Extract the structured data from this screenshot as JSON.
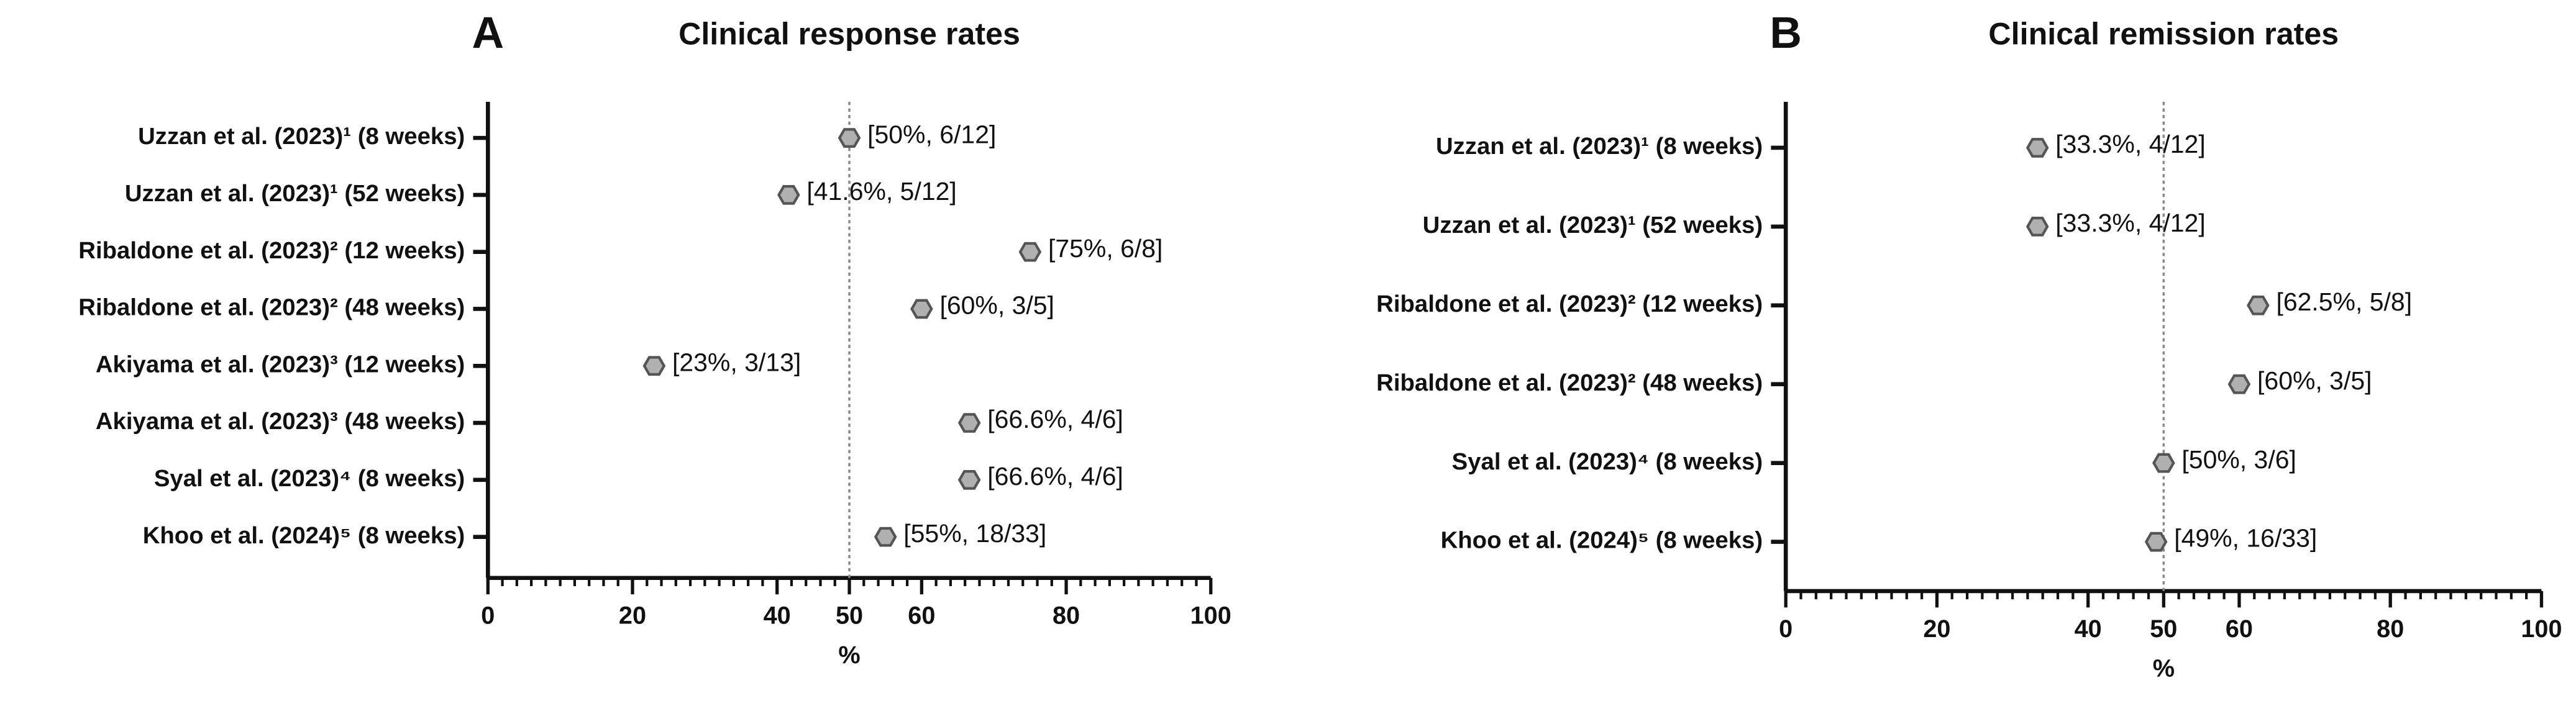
{
  "chart_data": [
    {
      "type": "dot",
      "panel": "A",
      "title": "Clinical response rates",
      "categories": [
        "Uzzan et al. (2023)¹ (8 weeks)",
        "Uzzan et al. (2023)¹ (52 weeks)",
        "Ribaldone et al. (2023)² (12 weeks)",
        "Ribaldone et al. (2023)² (48 weeks)",
        "Akiyama et al. (2023)³ (12 weeks)",
        "Akiyama et al. (2023)³ (48 weeks)",
        "Syal et al. (2023)⁴ (8 weeks)",
        "Khoo et al. (2024)⁵ (8 weeks)"
      ],
      "values": [
        50,
        41.6,
        75,
        60,
        23,
        66.6,
        66.6,
        55
      ],
      "value_labels": [
        "[50%, 6/12]",
        "[41.6%, 5/12]",
        "[75%, 6/8]",
        "[60%, 3/5]",
        "[23%, 3/13]",
        "[66.6%, 4/6]",
        "[66.6%, 4/6]",
        "[55%, 18/33]"
      ],
      "color": "#b0b0b0",
      "xlabel": "%",
      "xlim": [
        0,
        100
      ],
      "xticks": [
        0,
        20,
        40,
        50,
        60,
        80,
        100
      ],
      "xminor_step": 2,
      "reference_line": 50
    },
    {
      "type": "dot",
      "panel": "B",
      "title": "Clinical remission rates",
      "categories": [
        "Uzzan et al. (2023)¹ (8 weeks)",
        "Uzzan et al. (2023)¹ (52 weeks)",
        "Ribaldone et al. (2023)² (12 weeks)",
        "Ribaldone et al. (2023)² (48 weeks)",
        "Syal et al. (2023)⁴ (8 weeks)",
        "Khoo et al. (2024)⁵ (8 weeks)"
      ],
      "values": [
        33.3,
        33.3,
        62.5,
        60,
        50,
        49
      ],
      "value_labels": [
        "[33.3%, 4/12]",
        "[33.3%, 4/12]",
        "[62.5%, 5/8]",
        "[60%, 3/5]",
        "[50%, 3/6]",
        "[49%, 16/33]"
      ],
      "color": "#b0b0b0",
      "xlabel": "%",
      "xlim": [
        0,
        100
      ],
      "xticks": [
        0,
        20,
        40,
        50,
        60,
        80,
        100
      ],
      "xminor_step": 2,
      "reference_line": 50
    }
  ]
}
